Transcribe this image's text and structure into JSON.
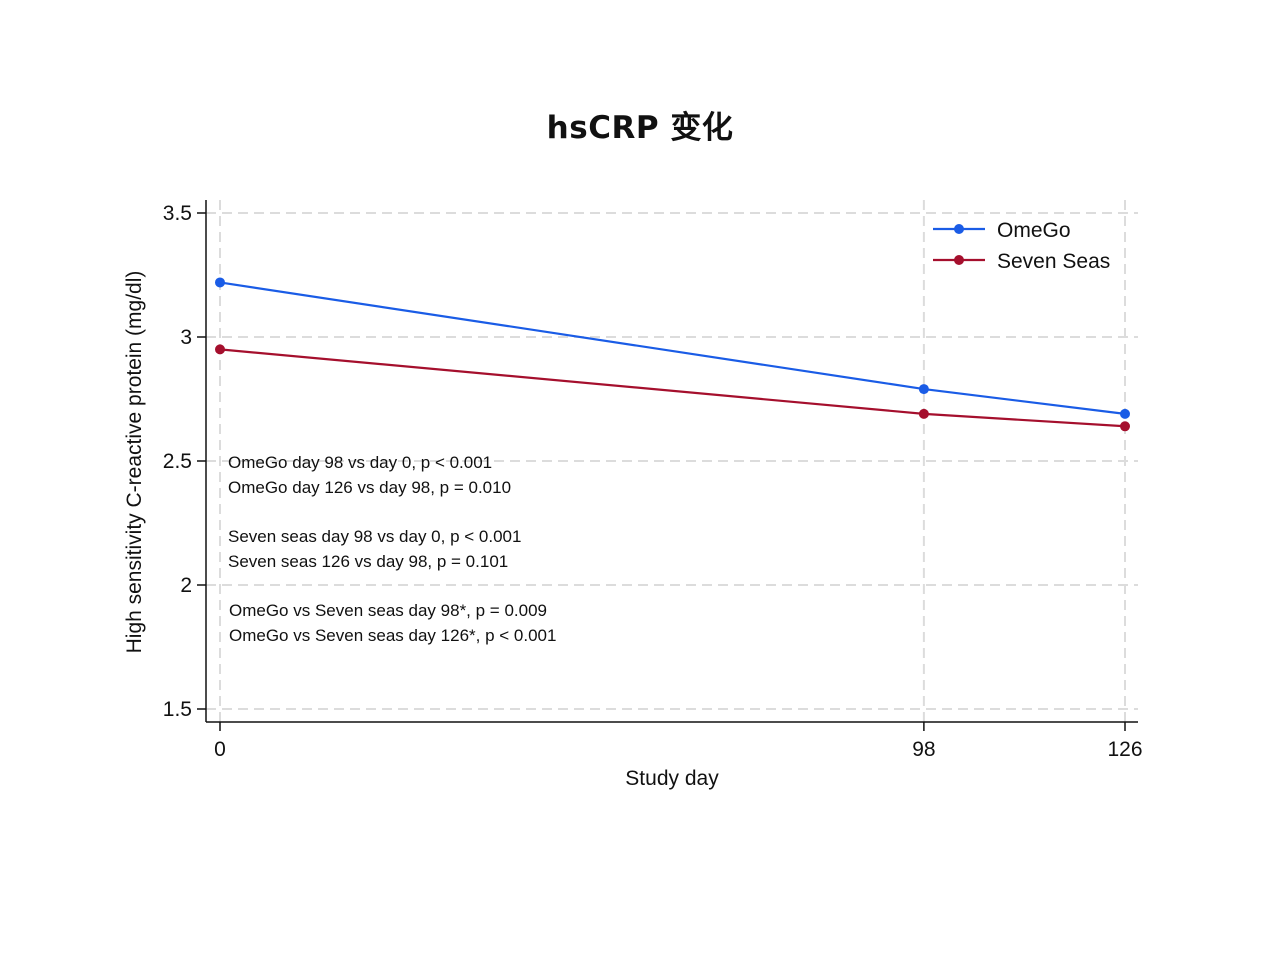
{
  "page_title": "hsCRP 变化",
  "chart_data": {
    "type": "line",
    "title": "hsCRP 变化",
    "xlabel": "Study day",
    "ylabel": "High sensitivity C-reactive protein (mg/dl)",
    "x": [
      0,
      98,
      126
    ],
    "x_tick_labels": [
      "0",
      "98",
      "126"
    ],
    "xlim": [
      0,
      126
    ],
    "ylim": [
      1.5,
      3.5
    ],
    "y_ticks": [
      1.5,
      2,
      2.5,
      3,
      3.5
    ],
    "y_tick_labels": [
      "1.5",
      "2",
      "2.5",
      "3",
      "3.5"
    ],
    "grid": true,
    "legend_position": "top-right",
    "series": [
      {
        "name": "OmeGo",
        "color": "#1a5ce6",
        "values": [
          3.22,
          2.79,
          2.69
        ]
      },
      {
        "name": "Seven Seas",
        "color": "#a50f2d",
        "values": [
          2.95,
          2.69,
          2.64
        ]
      }
    ],
    "annotations": [
      "OmeGo day 98 vs day 0, p < 0.001",
      "OmeGo day 126 vs day 98, p = 0.010",
      "Seven seas day 98 vs day 0, p < 0.001",
      "Seven seas 126 vs day 98, p = 0.101",
      "OmeGo vs Seven seas day 98*, p = 0.009",
      "OmeGo vs Seven seas day 126*, p < 0.001"
    ]
  }
}
